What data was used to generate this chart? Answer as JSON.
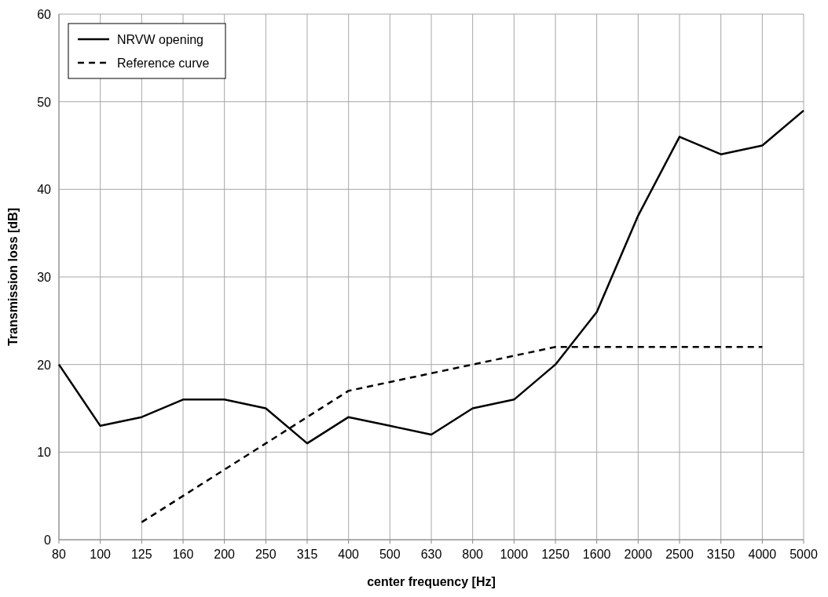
{
  "chart_data": {
    "type": "line",
    "xlabel": "center frequency [Hz]",
    "ylabel": "Transmission loss [dB]",
    "categories": [
      "80",
      "100",
      "125",
      "160",
      "200",
      "250",
      "315",
      "400",
      "500",
      "630",
      "800",
      "1000",
      "1250",
      "1600",
      "2000",
      "2500",
      "3150",
      "4000",
      "5000"
    ],
    "series": [
      {
        "name": "NRVW opening",
        "color": "#000000",
        "line_style": "solid",
        "values": [
          20,
          13,
          14,
          16,
          16,
          15,
          11,
          14,
          13,
          12,
          15,
          16,
          20,
          26,
          37,
          46,
          44,
          45,
          49
        ]
      },
      {
        "name": "Reference curve",
        "color": "#000000",
        "line_style": "dashed",
        "values": [
          null,
          null,
          2,
          5,
          8,
          11,
          14,
          17,
          18,
          19,
          20,
          21,
          22,
          22,
          22,
          22,
          22,
          22,
          null
        ]
      }
    ],
    "ylim": [
      0,
      60
    ],
    "yticks": [
      0,
      10,
      20,
      30,
      40,
      50,
      60
    ],
    "grid": true,
    "legend": "top left",
    "marker": "none"
  }
}
